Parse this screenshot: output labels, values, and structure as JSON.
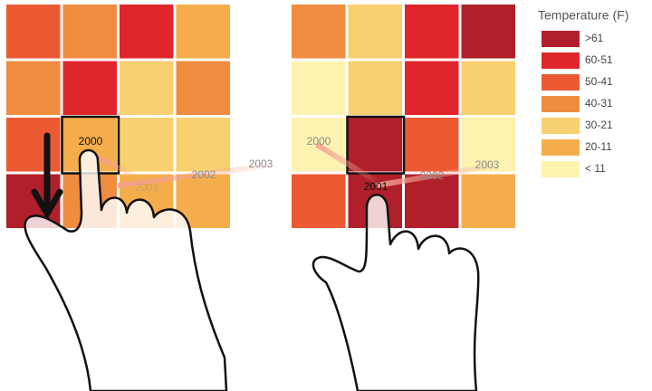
{
  "legend": {
    "title": "Temperature (F)",
    "items": [
      {
        "label": ">61",
        "color": "#b01f2a"
      },
      {
        "label": "60-51",
        "color": "#e0262b"
      },
      {
        "label": "50-41",
        "color": "#ec5a34"
      },
      {
        "label": "40-31",
        "color": "#f08c3f"
      },
      {
        "label": "30-21",
        "color": "#f9d070"
      },
      {
        "label": "20-11",
        "color": "#f5ad4b"
      },
      {
        "label": "< 11",
        "color": "#fdf2b0"
      }
    ]
  },
  "panels": [
    {
      "cells": [
        "#ec5a34",
        "#f08c3f",
        "#e0262b",
        "#f5ad4b",
        "#f08c3f",
        "#e0262b",
        "#f9d070",
        "#f08c3f",
        "#ec5a34",
        "#f5ad4b",
        "#f9d070",
        "#f9d070",
        "#b01f2a",
        "#f08c3f",
        "#f5ad4b",
        "#f5ad4b"
      ],
      "selected": 9,
      "labels": [
        "2000",
        "2001",
        "2002",
        "2003"
      ]
    },
    {
      "cells": [
        "#f08c3f",
        "#f9d070",
        "#e0262b",
        "#b01f2a",
        "#fdf2b0",
        "#f9d070",
        "#e0262b",
        "#f9d070",
        "#fdf2b0",
        "#b01f2a",
        "#ec5a34",
        "#fdf2b0",
        "#ec5a34",
        "#b01f2a",
        "#b01f2a",
        "#f5ad4b"
      ],
      "selected": 9,
      "labels": [
        "2000",
        "2001",
        "2002",
        "2003"
      ]
    }
  ]
}
